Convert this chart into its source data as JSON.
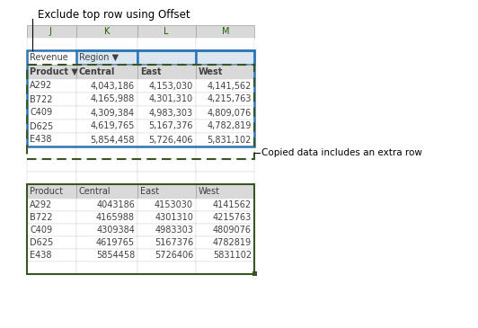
{
  "title_annotation": "Exclude top row using Offset",
  "col_headers": [
    "J",
    "K",
    "L",
    "M"
  ],
  "top_table": {
    "row_revenue": [
      "Revenue",
      "Region ▼",
      "",
      ""
    ],
    "row_header": [
      "Product ▼",
      "Central",
      "East",
      "West"
    ],
    "rows": [
      [
        "A292",
        "4,043,186",
        "4,153,030",
        "4,141,562"
      ],
      [
        "B722",
        "4,165,988",
        "4,301,310",
        "4,215,763"
      ],
      [
        "C409",
        "4,309,384",
        "4,983,303",
        "4,809,076"
      ],
      [
        "D625",
        "4,619,765",
        "5,167,376",
        "4,782,819"
      ],
      [
        "E438",
        "5,854,458",
        "5,726,406",
        "5,831,102"
      ]
    ]
  },
  "bottom_table": {
    "row_header": [
      "Product",
      "Central",
      "East",
      "West"
    ],
    "rows": [
      [
        "A292",
        "4043186",
        "4153030",
        "4141562"
      ],
      [
        "B722",
        "4165988",
        "4301310",
        "4215763"
      ],
      [
        "C409",
        "4309384",
        "4983303",
        "4809076"
      ],
      [
        "D625",
        "4619765",
        "5167376",
        "4782819"
      ],
      [
        "E438",
        "5854458",
        "5726406",
        "5831102"
      ]
    ]
  },
  "right_annotation": "Copied data includes an extra row",
  "cell_bg": "#ffffff",
  "header_bg": "#d9d9d9",
  "col_header_bg": "#d9d9d9",
  "blue_border": "#2e75b6",
  "green_border": "#375623",
  "selected_blue_bg": "#dce6f1",
  "grid_bg": "#ffffff"
}
